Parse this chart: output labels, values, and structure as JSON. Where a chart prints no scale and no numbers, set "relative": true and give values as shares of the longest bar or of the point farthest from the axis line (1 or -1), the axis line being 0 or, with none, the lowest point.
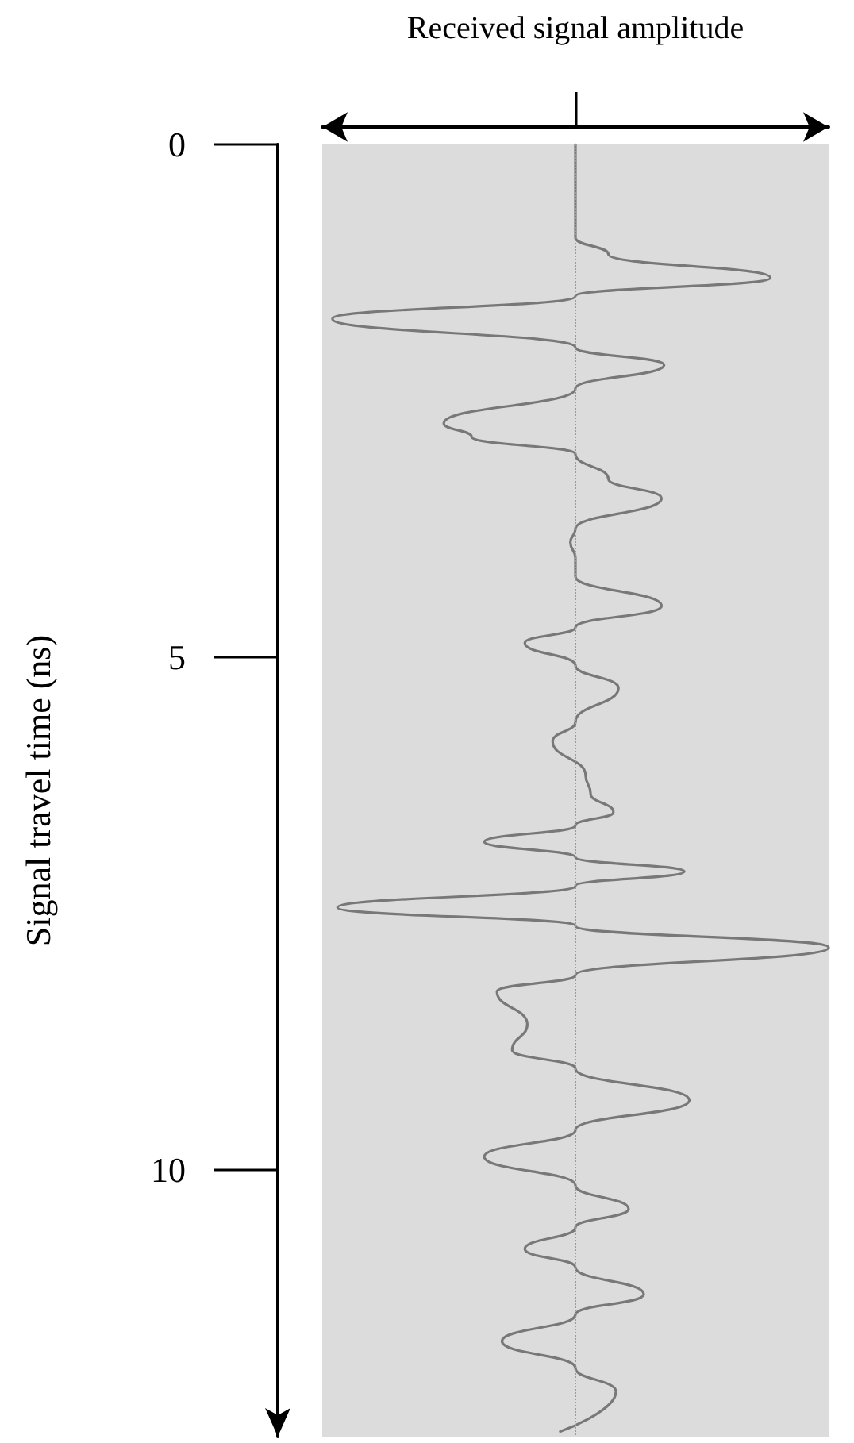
{
  "chart_data": {
    "type": "line",
    "orientation": "horizontal",
    "relative": true,
    "xlabel": "Received signal amplitude",
    "ylabel": "Signal travel time (ns)",
    "ylim": [
      12.6,
      0
    ],
    "yticks": [
      0,
      5,
      10
    ],
    "x": [
      0,
      0.91,
      1.07,
      1.3,
      1.48,
      1.7,
      1.98,
      2.15,
      2.38,
      2.72,
      2.85,
      3.02,
      3.26,
      3.45,
      3.75,
      3.88,
      4.03,
      4.21,
      4.5,
      4.71,
      4.86,
      5.08,
      5.3,
      5.63,
      5.82,
      6.15,
      6.33,
      6.51,
      6.64,
      6.8,
      6.95,
      7.09,
      7.23,
      7.44,
      7.62,
      7.83,
      8.1,
      8.26,
      8.58,
      8.83,
      9.01,
      9.32,
      9.61,
      9.87,
      10.15,
      10.38,
      10.56,
      10.77,
      10.95,
      11.21,
      11.41,
      11.67,
      11.93,
      12.16,
      12.55
    ],
    "series": [
      {
        "color": "#787878",
        "values": [
          0,
          0,
          0.13,
          0.77,
          0,
          -0.96,
          0,
          0.35,
          0,
          -0.52,
          -0.41,
          0,
          0.13,
          0.34,
          0,
          -0.02,
          0,
          0,
          0.34,
          0,
          -0.2,
          0,
          0.17,
          0,
          -0.09,
          0.04,
          0.06,
          0.15,
          0,
          -0.36,
          0,
          0.43,
          0,
          -0.94,
          0,
          1.0,
          0,
          -0.31,
          -0.19,
          -0.25,
          0,
          0.45,
          0,
          -0.36,
          0,
          0.21,
          0,
          -0.2,
          0,
          0.27,
          0,
          -0.29,
          0,
          0.16,
          -0.06
        ]
      }
    ],
    "ref_lines": [
      {
        "axis": "x",
        "value": 0,
        "line_style": "dotted",
        "color": "#9a9a9a"
      }
    ],
    "grid": false,
    "marker": "none",
    "line_style": "solid"
  }
}
